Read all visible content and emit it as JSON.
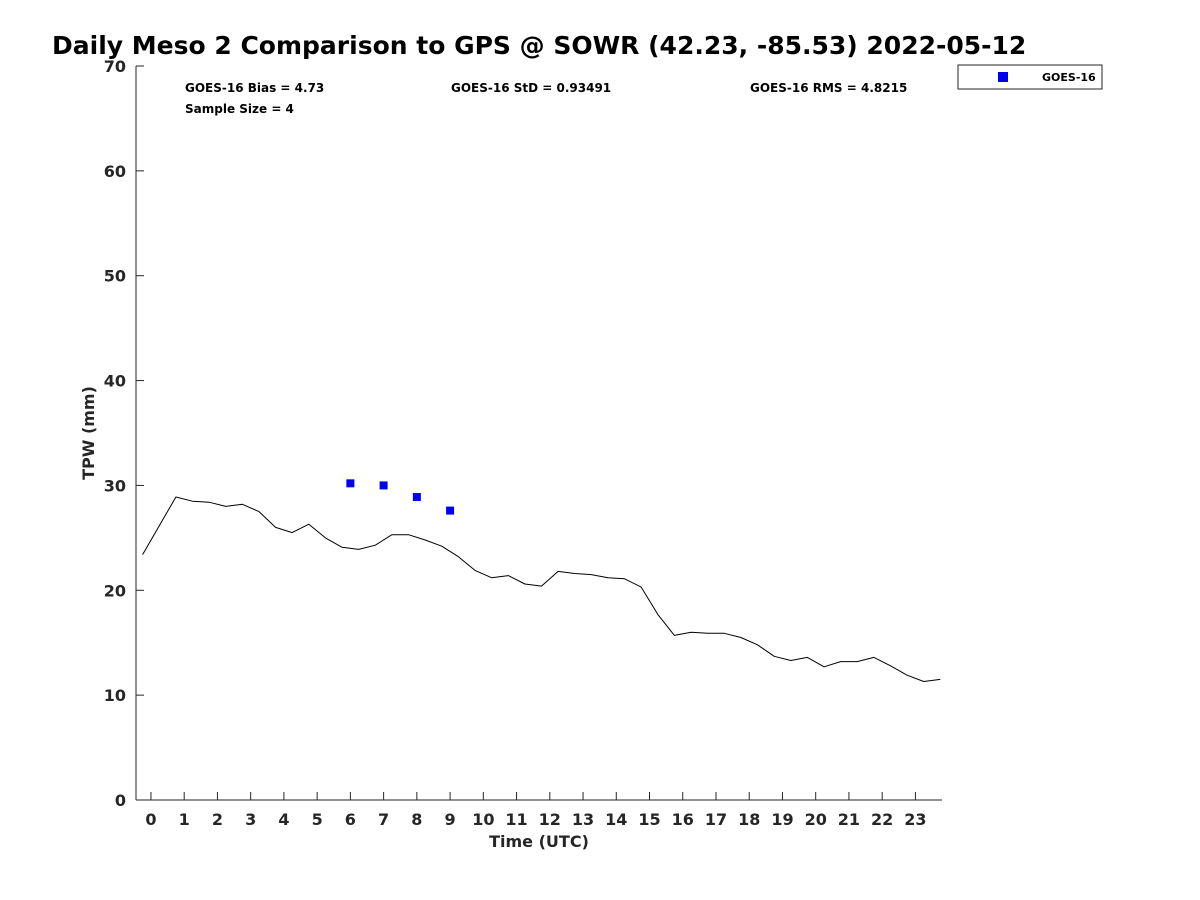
{
  "chart_data": {
    "type": "line",
    "title": "Daily Meso 2 Comparison to GPS @ SOWR (42.23, -85.53) 2022-05-12",
    "xlabel": "Time (UTC)",
    "ylabel": "TPW (mm)",
    "xlim": [
      -0.45,
      23.8
    ],
    "ylim": [
      0,
      70
    ],
    "xticks": [
      "0",
      "1",
      "2",
      "3",
      "4",
      "5",
      "6",
      "7",
      "8",
      "9",
      "10",
      "11",
      "12",
      "13",
      "14",
      "15",
      "16",
      "17",
      "18",
      "19",
      "20",
      "21",
      "22",
      "23"
    ],
    "yticks": [
      "0",
      "10",
      "20",
      "30",
      "40",
      "50",
      "60",
      "70"
    ],
    "grid": false,
    "legend_position": "top-right, outside plot",
    "stats": {
      "bias": "GOES-16 Bias = 4.73",
      "std": "GOES-16 StD = 0.93491",
      "rms": "GOES-16 RMS = 4.8215",
      "sample": "Sample Size = 4"
    },
    "series": [
      {
        "kind": "line",
        "color": "#000000",
        "x": [
          -0.25,
          0.75,
          1.25,
          1.75,
          2.25,
          2.75,
          3.25,
          3.75,
          4.25,
          4.75,
          5.25,
          5.75,
          6.25,
          6.75,
          7.25,
          7.75,
          8.25,
          8.75,
          9.25,
          9.75,
          10.25,
          10.75,
          11.25,
          11.75,
          12.25,
          12.75,
          13.25,
          13.75,
          14.25,
          14.75,
          15.25,
          15.75,
          16.25,
          16.75,
          17.25,
          17.75,
          18.25,
          18.75,
          19.25,
          19.75,
          20.25,
          20.75,
          21.25,
          21.75,
          22.25,
          22.75,
          23.25,
          23.75
        ],
        "y": [
          23.4,
          28.9,
          28.5,
          28.4,
          28.0,
          28.2,
          27.5,
          26.0,
          25.5,
          26.3,
          25.0,
          24.1,
          23.9,
          24.3,
          25.3,
          25.3,
          24.8,
          24.2,
          23.2,
          21.9,
          21.2,
          21.4,
          20.6,
          20.4,
          21.8,
          21.6,
          21.5,
          21.2,
          21.1,
          20.3,
          17.7,
          15.7,
          16.0,
          15.9,
          15.9,
          15.5,
          14.8,
          13.7,
          13.3,
          13.6,
          12.7,
          13.2,
          13.2,
          13.6,
          12.8,
          11.9,
          11.3,
          11.5
        ]
      },
      {
        "kind": "marker",
        "name": "GOES-16",
        "color": "#0000ee",
        "x": [
          6,
          7,
          8,
          9
        ],
        "y": [
          30.2,
          30.0,
          28.9,
          27.6
        ]
      }
    ]
  }
}
